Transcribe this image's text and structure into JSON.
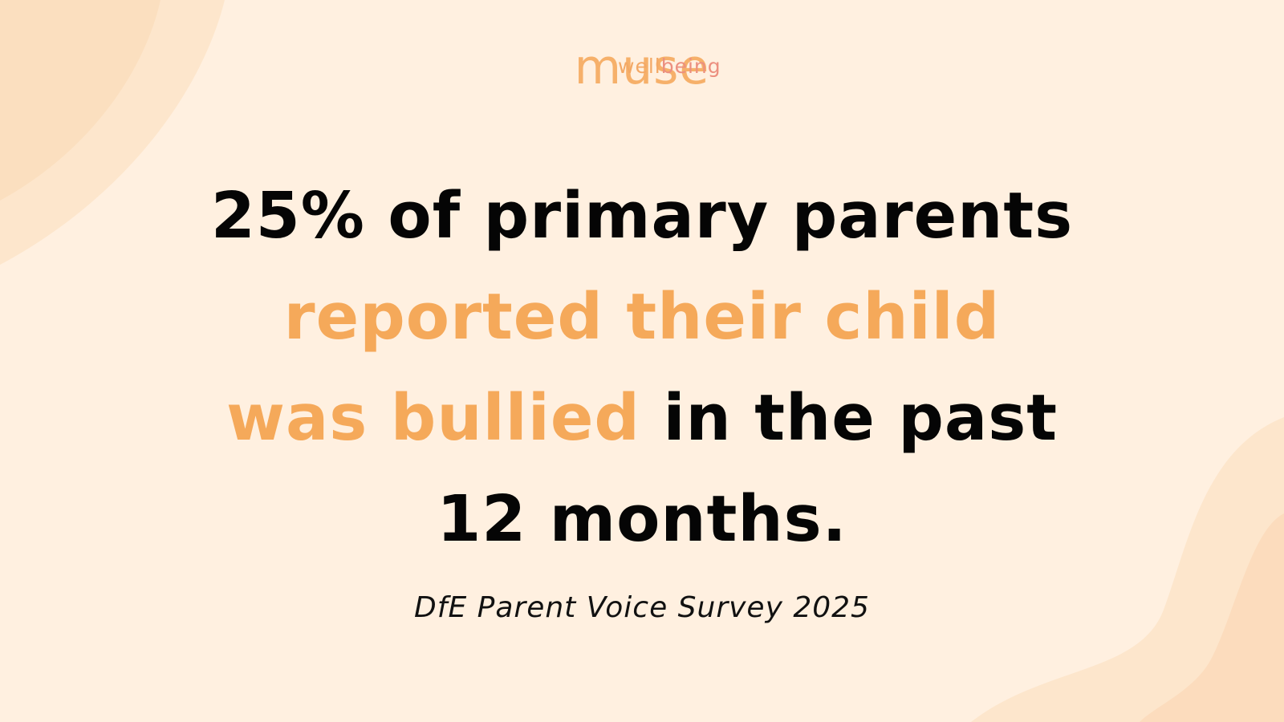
{
  "logo": {
    "word": "muse",
    "sub_part1": "well",
    "sub_part2": "being"
  },
  "headline": {
    "line1": "25% of primary parents",
    "line2": "reported their child",
    "line3_accent": "was bullied",
    "line3_rest": " in the past",
    "line4": "12 months."
  },
  "source": "DfE Parent Voice Survey 2025",
  "colors": {
    "background": "#fff0e0",
    "accent": "#f5a95a",
    "text": "#050505",
    "logo_gradient_end": "#ec8f7f"
  }
}
